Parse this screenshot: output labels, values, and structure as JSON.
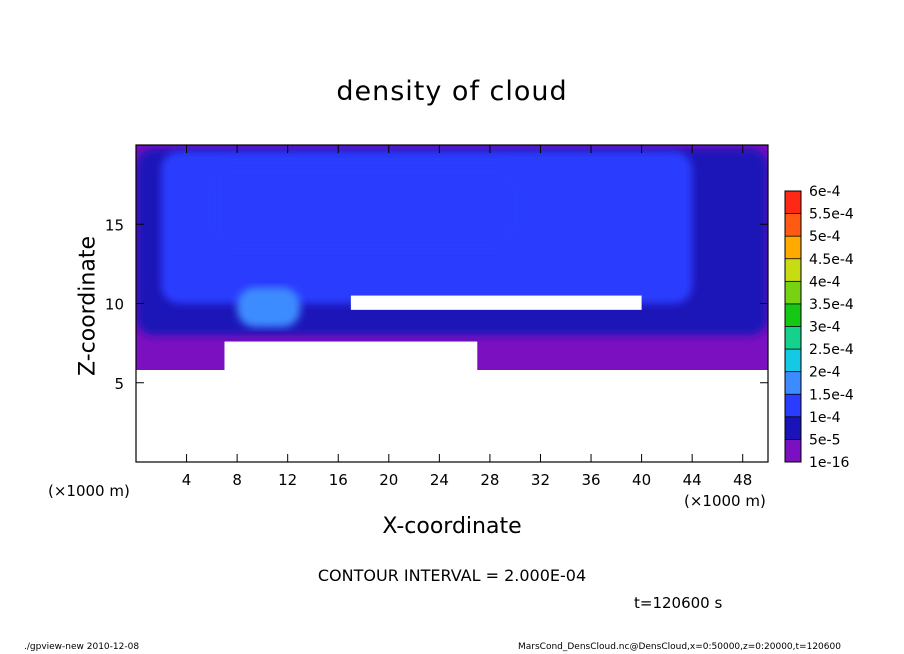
{
  "chart_data": {
    "type": "heatmap",
    "title": "density of cloud",
    "xlabel": "X-coordinate",
    "ylabel": "Z-coordinate",
    "x_unit": "(×1000 m)",
    "xlim": [
      0,
      50
    ],
    "ylim": [
      0,
      20
    ],
    "x_ticks": [
      4,
      8,
      12,
      16,
      20,
      24,
      28,
      32,
      36,
      40,
      44,
      48
    ],
    "y_ticks": [
      5,
      10,
      15
    ],
    "colorbar": {
      "levels": [
        "1e-16",
        "5e-5",
        "1e-4",
        "1.5e-4",
        "2e-4",
        "2.5e-4",
        "3e-4",
        "3.5e-4",
        "4e-4",
        "4.5e-4",
        "5e-4",
        "5.5e-4",
        "6e-4"
      ],
      "colors": [
        "#7a10c0",
        "#1a14b8",
        "#2a3cff",
        "#3c8cff",
        "#14c8e6",
        "#14d28c",
        "#14c814",
        "#78d214",
        "#c8dc14",
        "#ffaa00",
        "#ff5a14",
        "#ff2814",
        "#ff8c8c"
      ]
    },
    "regions": [
      {
        "level": "1e-16",
        "x": [
          0,
          50
        ],
        "z": [
          5.8,
          20
        ]
      },
      {
        "level": "5e-5",
        "x": [
          0,
          50
        ],
        "z": [
          8,
          19.8
        ]
      },
      {
        "level": "1e-4",
        "x": [
          2,
          44
        ],
        "z": [
          10,
          19.6
        ]
      },
      {
        "level": "1e-4",
        "x": [
          6,
          30
        ],
        "z": [
          13.5,
          18.8
        ]
      },
      {
        "level": "1.5e-4",
        "x": [
          8,
          13
        ],
        "z": [
          8.5,
          11
        ]
      }
    ],
    "empty_regions": [
      {
        "x": [
          0,
          50
        ],
        "z": [
          0,
          5.8
        ]
      },
      {
        "x": [
          17,
          40
        ],
        "z": [
          9.6,
          10.5
        ]
      },
      {
        "x": [
          7,
          27
        ],
        "z": [
          5.8,
          7.6
        ]
      }
    ],
    "contour_interval": "CONTOUR INTERVAL = 2.000E-04",
    "time": "t=120600 s"
  },
  "footer": {
    "left": "./gpview-new   2010-12-08",
    "right": "MarsCond_DensCloud.nc@DensCloud,x=0:50000,z=0:20000,t=120600"
  }
}
